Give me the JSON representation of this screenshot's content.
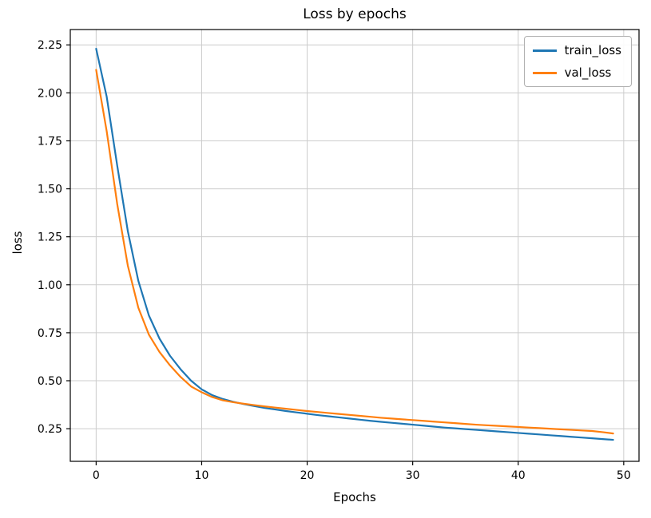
{
  "chart_data": {
    "type": "line",
    "title": "Loss by epochs",
    "xlabel": "Epochs",
    "ylabel": "loss",
    "xlim": [
      -2.45,
      51.45
    ],
    "ylim": [
      0.08,
      2.33
    ],
    "grid": true,
    "legend_position": "upper right",
    "x_tick_values": [
      0,
      10,
      20,
      30,
      40,
      50
    ],
    "x_tick_labels": [
      "0",
      "10",
      "20",
      "30",
      "40",
      "50"
    ],
    "y_tick_values": [
      0.25,
      0.5,
      0.75,
      1.0,
      1.25,
      1.5,
      1.75,
      2.0,
      2.25
    ],
    "y_tick_labels": [
      "0.25",
      "0.50",
      "0.75",
      "1.00",
      "1.25",
      "1.50",
      "1.75",
      "2.00",
      "2.25"
    ],
    "x": [
      0,
      1,
      2,
      3,
      4,
      5,
      6,
      7,
      8,
      9,
      10,
      11,
      12,
      13,
      14,
      15,
      16,
      17,
      18,
      19,
      20,
      21,
      22,
      23,
      24,
      25,
      26,
      27,
      28,
      29,
      30,
      31,
      32,
      33,
      34,
      35,
      36,
      37,
      38,
      39,
      40,
      41,
      42,
      43,
      44,
      45,
      46,
      47,
      48,
      49
    ],
    "series": [
      {
        "name": "train_loss",
        "color": "#1f77b4",
        "values": [
          2.23,
          1.98,
          1.62,
          1.28,
          1.02,
          0.84,
          0.72,
          0.63,
          0.56,
          0.5,
          0.455,
          0.425,
          0.405,
          0.39,
          0.378,
          0.368,
          0.358,
          0.35,
          0.342,
          0.335,
          0.328,
          0.321,
          0.315,
          0.309,
          0.303,
          0.297,
          0.291,
          0.286,
          0.281,
          0.276,
          0.271,
          0.266,
          0.261,
          0.256,
          0.252,
          0.248,
          0.244,
          0.24,
          0.236,
          0.232,
          0.228,
          0.224,
          0.22,
          0.216,
          0.212,
          0.208,
          0.204,
          0.2,
          0.196,
          0.192
        ]
      },
      {
        "name": "val_loss",
        "color": "#ff7f0e",
        "values": [
          2.12,
          1.8,
          1.42,
          1.1,
          0.88,
          0.74,
          0.65,
          0.58,
          0.52,
          0.47,
          0.44,
          0.415,
          0.398,
          0.388,
          0.38,
          0.373,
          0.366,
          0.36,
          0.354,
          0.348,
          0.342,
          0.337,
          0.332,
          0.327,
          0.322,
          0.317,
          0.312,
          0.307,
          0.303,
          0.299,
          0.295,
          0.291,
          0.287,
          0.283,
          0.279,
          0.275,
          0.271,
          0.268,
          0.265,
          0.262,
          0.259,
          0.256,
          0.253,
          0.25,
          0.247,
          0.244,
          0.241,
          0.238,
          0.232,
          0.225
        ]
      }
    ],
    "grid_color": "#cccccc",
    "spine_color": "#000000",
    "background_color": "#ffffff"
  }
}
